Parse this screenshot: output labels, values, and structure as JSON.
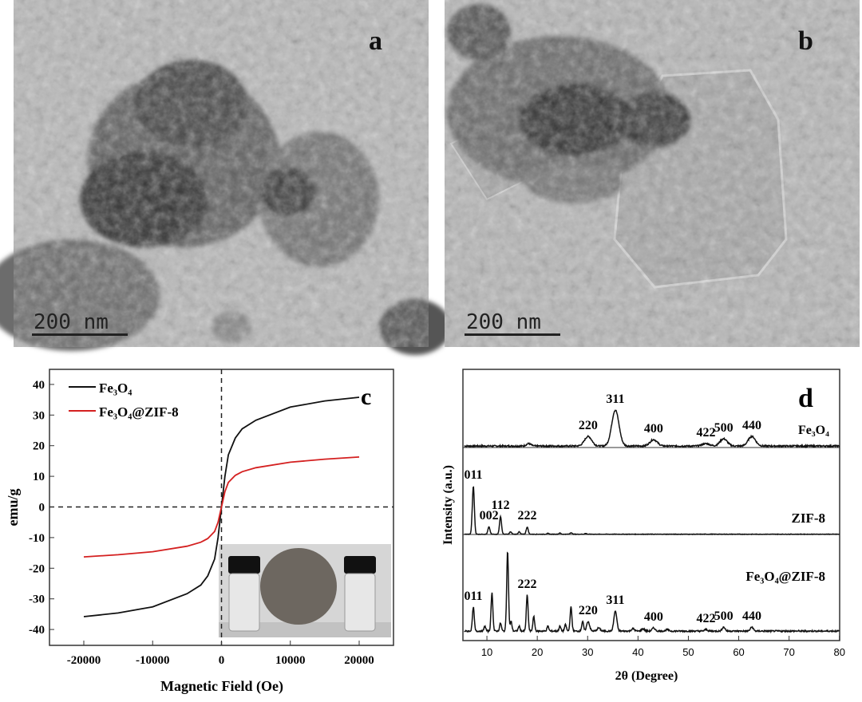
{
  "panels": {
    "a": {
      "label": "a",
      "scale_bar": "200 nm"
    },
    "b": {
      "label": "b",
      "scale_bar": "200 nm"
    }
  },
  "chart_data": [
    {
      "panel_label": "c",
      "type": "line",
      "xlabel": "Magnetic Field (Oe)",
      "ylabel": "emu/g",
      "xlim": [
        -25000,
        25000
      ],
      "ylim": [
        -45,
        45
      ],
      "xticks": [
        "-20000",
        "-10000",
        "0",
        "10000",
        "20000"
      ],
      "yticks": [
        "40",
        "30",
        "20",
        "10",
        "0",
        "-10",
        "-20",
        "-30",
        "-40"
      ],
      "legend_position": "top-left",
      "reference_lines": {
        "x": 0,
        "y": 0,
        "style": "dashed"
      },
      "inset": "photo of two vials beside a magnet",
      "series": [
        {
          "name": "Fe₃O₄",
          "color": "#111111",
          "x": [
            -20000,
            -15000,
            -10000,
            -5000,
            -3000,
            -2000,
            -1000,
            -500,
            0,
            500,
            1000,
            2000,
            3000,
            5000,
            10000,
            15000,
            20000
          ],
          "y": [
            -35.8,
            -34.6,
            -32.6,
            -28.3,
            -25.5,
            -22.5,
            -17,
            -10,
            0,
            10,
            17,
            22.5,
            25.5,
            28.3,
            32.6,
            34.6,
            35.8
          ]
        },
        {
          "name": "Fe₃O₄@ZIF-8",
          "color": "#d42020",
          "x": [
            -20000,
            -15000,
            -10000,
            -5000,
            -3000,
            -2000,
            -1000,
            -500,
            0,
            500,
            1000,
            2000,
            3000,
            5000,
            10000,
            15000,
            20000
          ],
          "y": [
            -16.3,
            -15.6,
            -14.6,
            -12.8,
            -11.5,
            -10.3,
            -8,
            -5,
            0,
            5,
            8,
            10.3,
            11.5,
            12.8,
            14.6,
            15.6,
            16.3
          ]
        }
      ]
    },
    {
      "panel_label": "d",
      "type": "line",
      "xlabel": "2θ  (Degree)",
      "ylabel": "Intensity (a.u.)",
      "xlim": [
        5,
        80
      ],
      "xticks": [
        "10",
        "20",
        "30",
        "40",
        "50",
        "60",
        "70",
        "80"
      ],
      "series": [
        {
          "name": "Fe₃O₄",
          "color": "#111111",
          "peaks": [
            [
              18.3,
              3
            ],
            [
              30.1,
              12
            ],
            [
              35.5,
              45
            ],
            [
              43.1,
              8
            ],
            [
              53.5,
              3
            ],
            [
              57.0,
              9
            ],
            [
              62.6,
              12
            ]
          ],
          "labels": [
            {
              "text": "220",
              "theta": 30.1
            },
            {
              "text": "311",
              "theta": 35.5
            },
            {
              "text": "400",
              "theta": 43.1
            },
            {
              "text": "422",
              "theta": 53.5
            },
            {
              "text": "500",
              "theta": 57.0
            },
            {
              "text": "440",
              "theta": 62.6
            }
          ]
        },
        {
          "name": "ZIF-8",
          "color": "#111111",
          "peaks": [
            [
              7.3,
              60
            ],
            [
              10.4,
              9
            ],
            [
              12.7,
              22
            ],
            [
              14.7,
              3
            ],
            [
              16.4,
              3
            ],
            [
              18.0,
              9
            ],
            [
              22.1,
              1
            ],
            [
              24.5,
              1.5
            ],
            [
              26.7,
              2
            ],
            [
              29.6,
              1
            ]
          ],
          "labels": [
            {
              "text": "011",
              "theta": 7.3
            },
            {
              "text": "002",
              "theta": 10.4
            },
            {
              "text": "112",
              "theta": 12.7
            },
            {
              "text": "222",
              "theta": 18.0
            }
          ]
        },
        {
          "name": "Fe₃O₄@ZIF-8",
          "color": "#111111",
          "peaks": [
            [
              7.3,
              30
            ],
            [
              9.6,
              6
            ],
            [
              11.0,
              48
            ],
            [
              12.7,
              10
            ],
            [
              14.1,
              100
            ],
            [
              14.8,
              12
            ],
            [
              16.4,
              6
            ],
            [
              18.0,
              45
            ],
            [
              19.3,
              18
            ],
            [
              22.1,
              6
            ],
            [
              24.5,
              6
            ],
            [
              25.6,
              8
            ],
            [
              26.7,
              30
            ],
            [
              29.0,
              12
            ],
            [
              30.1,
              12
            ],
            [
              32.2,
              4
            ],
            [
              35.5,
              25
            ],
            [
              39.0,
              3
            ],
            [
              41.0,
              3
            ],
            [
              43.1,
              4
            ],
            [
              45.8,
              2
            ],
            [
              53.5,
              2
            ],
            [
              57.0,
              5
            ],
            [
              62.6,
              5
            ]
          ],
          "labels": [
            {
              "text": "011",
              "theta": 7.3
            },
            {
              "text": "222",
              "theta": 18.0
            },
            {
              "text": "220",
              "theta": 30.1
            },
            {
              "text": "311",
              "theta": 35.5
            },
            {
              "text": "400",
              "theta": 43.1
            },
            {
              "text": "422",
              "theta": 53.5
            },
            {
              "text": "500",
              "theta": 57.0
            },
            {
              "text": "440",
              "theta": 62.6
            }
          ]
        }
      ]
    }
  ]
}
